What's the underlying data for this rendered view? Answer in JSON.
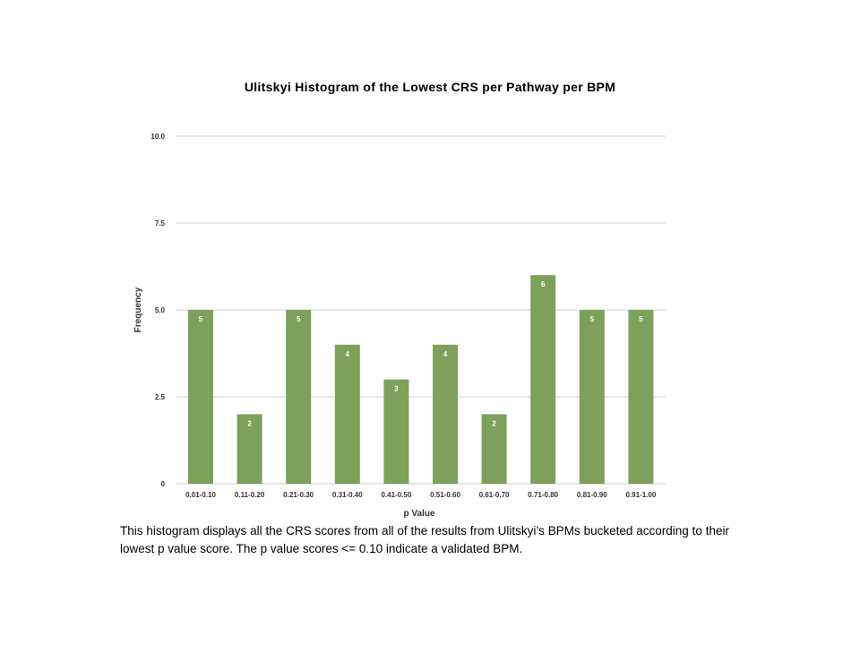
{
  "slide": {
    "title": "Ulitskyi Histogram of the Lowest CRS per Pathway per BPM",
    "caption": "This histogram displays all the CRS scores from all of the results from Ulitskyi’s BPMs bucketed according to their lowest p value score.  The p value scores <= 0.10 indicate a validated BPM."
  },
  "chart_data": {
    "type": "bar",
    "title": "Ulitskyi Histogram of the Lowest CRS per Pathway per BPM",
    "xlabel": "p Value",
    "ylabel": "Frequency",
    "categories": [
      "0.01-0.10",
      "0.11-0.20",
      "0.21-0.30",
      "0.31-0.40",
      "0.41-0.50",
      "0.51-0.60",
      "0.61-0.70",
      "0.71-0.80",
      "0.81-0.90",
      "0.91-1.00"
    ],
    "values": [
      5,
      2,
      5,
      4,
      3,
      4,
      2,
      6,
      5,
      5
    ],
    "data_labels": [
      "5",
      "2",
      "5",
      "4",
      "3",
      "4",
      "2",
      "6",
      "5",
      "5"
    ],
    "yticks": [
      0,
      2.5,
      5,
      7.5,
      10
    ],
    "ytick_labels": [
      "0",
      "2.5",
      "5.0",
      "7.5",
      "10.0"
    ],
    "ylim": [
      0,
      10
    ],
    "grid": true,
    "legend": "none",
    "bar_color": "#7da05a"
  }
}
